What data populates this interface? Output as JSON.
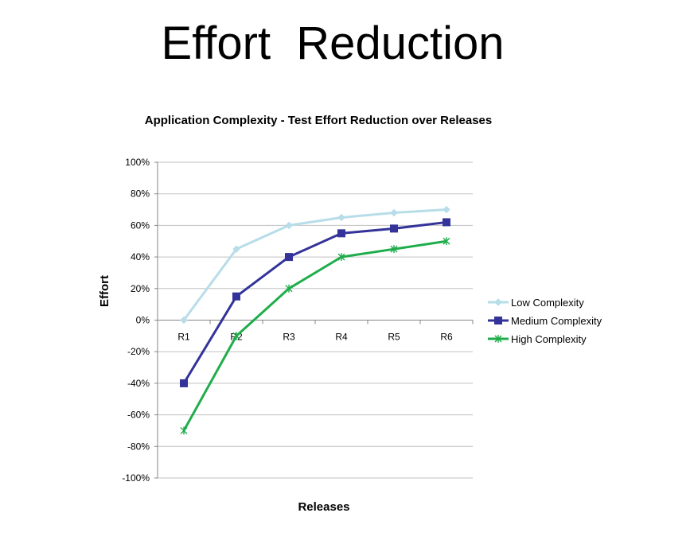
{
  "slide": {
    "title": "Effort  Reduction"
  },
  "colors": {
    "grid": "#c0c0c0",
    "axis": "#868686",
    "low": "#b7dde8",
    "medium": "#333399",
    "high": "#1fad4b"
  },
  "chart_data": {
    "type": "line",
    "title": "Application Complexity  - Test Effort Reduction over Releases",
    "xlabel": "Releases",
    "ylabel": "Effort",
    "categories": [
      "R1",
      "R2",
      "R3",
      "R4",
      "R5",
      "R6"
    ],
    "ylim": [
      -100,
      100
    ],
    "yticks": [
      100,
      80,
      60,
      40,
      20,
      0,
      -20,
      -40,
      -60,
      -80,
      -100
    ],
    "ytick_labels": [
      "100%",
      "80%",
      "60%",
      "40%",
      "20%",
      "0%",
      "-20%",
      "-40%",
      "-60%",
      "-80%",
      "-100%"
    ],
    "grid": true,
    "legend": "right",
    "series": [
      {
        "name": "Low Complexity",
        "values": [
          0,
          45,
          60,
          65,
          68,
          70
        ],
        "marker": "diamond",
        "color_key": "low"
      },
      {
        "name": "Medium Complexity",
        "values": [
          -40,
          15,
          40,
          55,
          58,
          62
        ],
        "marker": "square",
        "color_key": "medium"
      },
      {
        "name": "High Complexity",
        "values": [
          -70,
          -10,
          20,
          40,
          45,
          50
        ],
        "marker": "star",
        "color_key": "high"
      }
    ]
  }
}
